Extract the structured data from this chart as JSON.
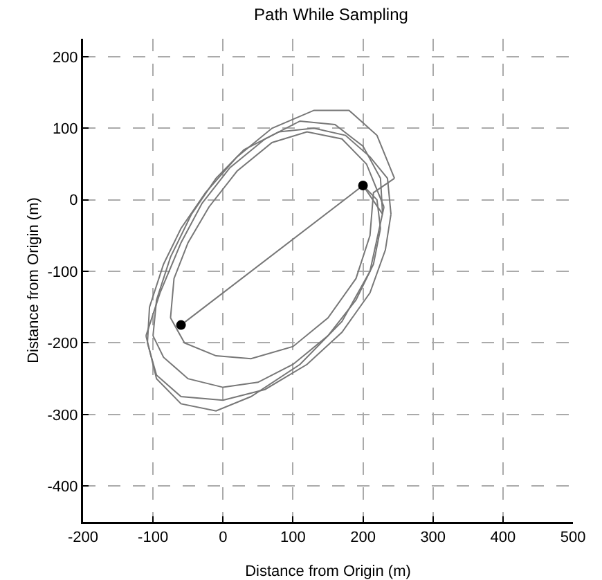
{
  "chart_data": {
    "type": "line",
    "title": "Path While Sampling",
    "xlabel": "Distance from Origin (m)",
    "ylabel": "Distance from Origin (m)",
    "xlim": [
      -200,
      500
    ],
    "ylim": [
      -450,
      225
    ],
    "xticks": [
      -200,
      -100,
      0,
      100,
      200,
      300,
      400,
      500
    ],
    "yticks": [
      -400,
      -300,
      -200,
      -100,
      0,
      100,
      200
    ],
    "grid": true,
    "series": [
      {
        "color": "#777777",
        "marker": "none",
        "line_style": "solid",
        "x": [
          200,
          220,
          225,
          null,
          225,
          215,
          190,
          150,
          100,
          50,
          0,
          -50,
          -85,
          -100,
          null,
          -100,
          -95,
          -75,
          -45,
          -10,
          30,
          80,
          130,
          175,
          210,
          235,
          240,
          null,
          240,
          232,
          210,
          170,
          120,
          60,
          0,
          -60,
          -95,
          -108,
          null,
          -108,
          -105,
          -85,
          -60,
          -25,
          20,
          70,
          130,
          180,
          220,
          245,
          null,
          245,
          215,
          210,
          190,
          150,
          100,
          40,
          -10,
          -55,
          -75,
          null,
          -75,
          -70,
          -50,
          -20,
          20,
          70,
          120,
          170,
          205,
          230,
          null,
          230,
          210,
          170,
          110,
          40,
          -10,
          -60,
          -95,
          -110,
          null,
          -110,
          -90,
          -60,
          -30,
          10,
          60,
          110,
          160,
          200,
          225,
          228,
          null,
          228,
          200,
          -60
        ],
        "values": [
          20,
          0,
          -40,
          null,
          -40,
          -90,
          -140,
          -190,
          -230,
          -255,
          -262,
          -250,
          -220,
          -190,
          null,
          -190,
          -140,
          -80,
          -20,
          30,
          70,
          95,
          100,
          90,
          60,
          30,
          -20,
          null,
          -20,
          -70,
          -130,
          -185,
          -230,
          -265,
          -280,
          -275,
          -245,
          -200,
          null,
          -200,
          -150,
          -90,
          -40,
          10,
          60,
          100,
          125,
          125,
          90,
          30,
          null,
          30,
          10,
          -50,
          -110,
          -165,
          -205,
          -222,
          -218,
          -200,
          -165,
          null,
          -165,
          -110,
          -60,
          -10,
          40,
          80,
          95,
          85,
          50,
          -10,
          null,
          -10,
          -100,
          -170,
          -230,
          -275,
          -295,
          -285,
          -250,
          -190,
          null,
          -190,
          -130,
          -60,
          -5,
          45,
          85,
          110,
          105,
          75,
          30,
          -20,
          null,
          -20,
          20,
          -175
        ]
      },
      {
        "type": "scatter",
        "color": "#000000",
        "marker": "circle",
        "x": [
          200,
          -60
        ],
        "values": [
          20,
          -175
        ]
      }
    ]
  }
}
